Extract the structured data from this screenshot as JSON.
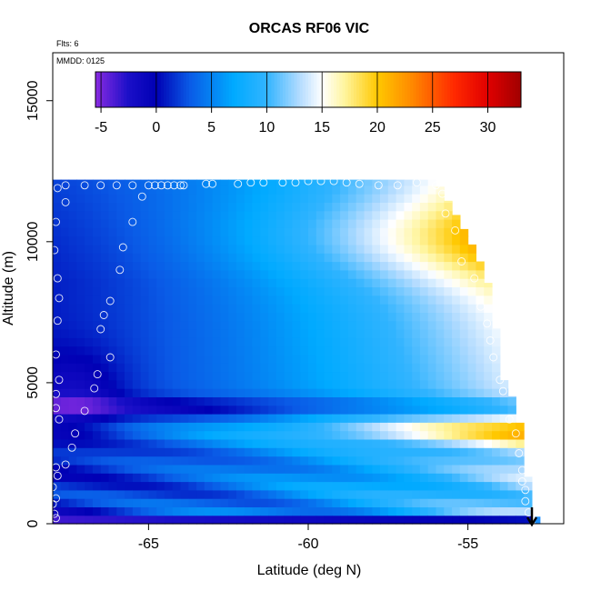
{
  "chart_data": {
    "type": "heatmap",
    "title": "ORCAS RF06 VIC",
    "subtitle_flights": "Flts: 6",
    "subtitle_date": "MMDD: 0125",
    "xlabel": "Latitude (deg N)",
    "ylabel": "Altitude (m)",
    "xlim": [
      -68,
      -52
    ],
    "ylim": [
      0,
      16700
    ],
    "x_ticks": [
      -65,
      -60,
      -55
    ],
    "x_tick_labels": [
      "-65",
      "-60",
      "-55"
    ],
    "y_ticks": [
      0,
      5000,
      10000,
      15000
    ],
    "y_tick_labels": [
      "0",
      "5000",
      "10000",
      "15000"
    ],
    "colorbar": {
      "range": [
        -5.5,
        33
      ],
      "ticks": [
        -5,
        0,
        5,
        10,
        15,
        20,
        25,
        30
      ],
      "tick_labels": [
        "-5",
        "0",
        "5",
        "10",
        "15",
        "20",
        "25",
        "30"
      ],
      "colors": [
        {
          "v": -5.5,
          "c": "#8a2be2"
        },
        {
          "v": -2.5,
          "c": "#1a0fc8"
        },
        {
          "v": 0,
          "c": "#0000b4"
        },
        {
          "v": 3,
          "c": "#0a5ae6"
        },
        {
          "v": 7,
          "c": "#00aaff"
        },
        {
          "v": 10,
          "c": "#32b4ff"
        },
        {
          "v": 13,
          "c": "#b4dcff"
        },
        {
          "v": 15,
          "c": "#ffffff"
        },
        {
          "v": 17,
          "c": "#fff5a0"
        },
        {
          "v": 20,
          "c": "#ffc800"
        },
        {
          "v": 23,
          "c": "#ff8c00"
        },
        {
          "v": 27,
          "c": "#ff2800"
        },
        {
          "v": 30,
          "c": "#e00000"
        },
        {
          "v": 33,
          "c": "#a00000"
        }
      ]
    },
    "grid": {
      "lat_start": -68,
      "lat_end": -52.9,
      "lat_step": 0.25,
      "alt_step": 300,
      "ceiling_points": [
        {
          "lat": -68,
          "alt": 12200
        },
        {
          "lat": -56,
          "alt": 12200
        },
        {
          "lat": -55.5,
          "alt": 11200
        },
        {
          "lat": -55,
          "alt": 10200
        },
        {
          "lat": -54.5,
          "alt": 9000
        },
        {
          "lat": -54.2,
          "alt": 7900
        },
        {
          "lat": -54,
          "alt": 5300
        },
        {
          "lat": -53.7,
          "alt": 4800
        },
        {
          "lat": -53.3,
          "alt": 3300
        },
        {
          "lat": -53,
          "alt": 500
        }
      ]
    },
    "flight_track": [
      [
        -67.9,
        200
      ],
      [
        -67.95,
        350
      ],
      [
        -68.0,
        700
      ],
      [
        -67.9,
        900
      ],
      [
        -68.0,
        1300
      ],
      [
        -67.85,
        1700
      ],
      [
        -67.9,
        2000
      ],
      [
        -67.6,
        2100
      ],
      [
        -67.4,
        2700
      ],
      [
        -67.3,
        3200
      ],
      [
        -67.8,
        3700
      ],
      [
        -67.9,
        4100
      ],
      [
        -67.0,
        4000
      ],
      [
        -66.7,
        4800
      ],
      [
        -66.6,
        5300
      ],
      [
        -66.2,
        5900
      ],
      [
        -66.5,
        6900
      ],
      [
        -66.4,
        7400
      ],
      [
        -66.2,
        7900
      ],
      [
        -65.9,
        9000
      ],
      [
        -65.8,
        9800
      ],
      [
        -65.5,
        10700
      ],
      [
        -65.2,
        11600
      ],
      [
        -67.9,
        10700
      ],
      [
        -67.95,
        9700
      ],
      [
        -67.85,
        8700
      ],
      [
        -67.8,
        8000
      ],
      [
        -67.85,
        7200
      ],
      [
        -67.9,
        6000
      ],
      [
        -67.8,
        5100
      ],
      [
        -67.9,
        4600
      ],
      [
        -67.85,
        11900
      ],
      [
        -67.6,
        11400
      ],
      [
        -67.6,
        12000
      ],
      [
        -67.0,
        12000
      ],
      [
        -66.5,
        12000
      ],
      [
        -66.0,
        12000
      ],
      [
        -65.5,
        12000
      ],
      [
        -65.0,
        12000
      ],
      [
        -64.8,
        12000
      ],
      [
        -64.6,
        12000
      ],
      [
        -64.4,
        12000
      ],
      [
        -64.2,
        12000
      ],
      [
        -64.0,
        12000
      ],
      [
        -63.9,
        12000
      ],
      [
        -63.2,
        12050
      ],
      [
        -63.0,
        12050
      ],
      [
        -62.2,
        12050
      ],
      [
        -61.8,
        12100
      ],
      [
        -61.4,
        12100
      ],
      [
        -60.8,
        12100
      ],
      [
        -60.4,
        12100
      ],
      [
        -60.0,
        12150
      ],
      [
        -59.6,
        12150
      ],
      [
        -59.2,
        12150
      ],
      [
        -58.8,
        12100
      ],
      [
        -58.4,
        12050
      ],
      [
        -57.8,
        12000
      ],
      [
        -57.2,
        12000
      ],
      [
        -56.6,
        12100
      ],
      [
        -56.0,
        12000
      ],
      [
        -55.8,
        11700
      ],
      [
        -55.7,
        11000
      ],
      [
        -55.4,
        10400
      ],
      [
        -55.2,
        9300
      ],
      [
        -54.8,
        8700
      ],
      [
        -54.6,
        7700
      ],
      [
        -54.4,
        7100
      ],
      [
        -54.3,
        6500
      ],
      [
        -54.2,
        5900
      ],
      [
        -54.0,
        5100
      ],
      [
        -53.9,
        4700
      ],
      [
        -53.7,
        3700
      ],
      [
        -53.5,
        3200
      ],
      [
        -53.4,
        2500
      ],
      [
        -53.3,
        1900
      ],
      [
        -53.3,
        1500
      ],
      [
        -53.2,
        1200
      ],
      [
        -53.2,
        800
      ],
      [
        -53.1,
        400
      ]
    ],
    "arrow": {
      "lat": -53.0,
      "alt": 0
    }
  }
}
